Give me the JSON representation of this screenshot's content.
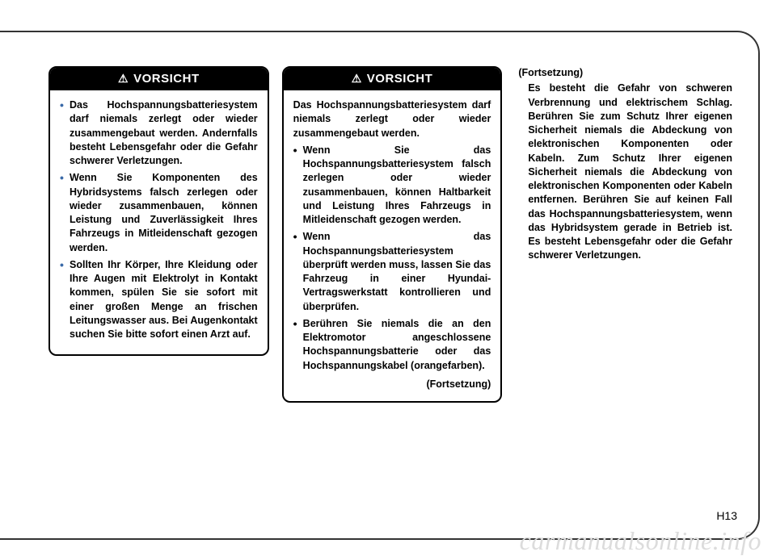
{
  "page_number": "H13",
  "watermark": "carmanualsonline.info",
  "colors": {
    "bullet": "#3a6aa8",
    "border": "#000000",
    "header_bg": "#000000",
    "header_fg": "#ffffff",
    "text": "#000000",
    "watermark": "#dcdcdc"
  },
  "col1": {
    "header": "VORSICHT",
    "items": [
      "Das Hochspannungsbatteriesystem darf niemals zerlegt oder wieder zusammengebaut werden. Andernfalls besteht Lebensgefahr oder die Gefahr schwerer Verletzungen.",
      "Wenn Sie Komponenten des Hybridsystems falsch zerlegen oder wieder zusammenbauen, können Leistung und Zuverlässigkeit Ihres Fahrzeugs in Mitleidenschaft gezogen werden.",
      "Sollten Ihr Körper, Ihre Kleidung oder Ihre Augen mit Elektrolyt in Kontakt kommen, spülen Sie sie sofort mit einer großen Menge an frischen Leitungswasser aus. Bei Augenkontakt suchen Sie bitte sofort einen Arzt auf."
    ]
  },
  "col2": {
    "header": "VORSICHT",
    "intro": "Das Hochspannungsbatteriesystem darf niemals zerlegt oder wieder zusammengebaut werden.",
    "items": [
      "Wenn Sie das Hochspannungsbatteriesystem falsch zerlegen oder wieder zusammenbauen, können Haltbarkeit und Leistung Ihres Fahrzeugs in Mitleidenschaft gezogen werden.",
      "Wenn das Hochspannungsbatteriesystem überprüft werden muss, lassen Sie das Fahrzeug in einer Hyundai-Vertragswerkstatt kontrollieren und überprüfen.",
      "Berühren Sie niemals die an den Elektromotor angeschlossene Hochspannungsbatterie oder das Hochspannungskabel (orangefarben)."
    ],
    "continued": "(Fortsetzung)"
  },
  "col3": {
    "continued": "(Fortsetzung)",
    "body": "Es besteht die Gefahr von schweren Verbrennung und elektrischem Schlag. Berühren Sie zum Schutz Ihrer eigenen Sicherheit niemals die Abdeckung von elektronischen Komponenten oder Kabeln. Zum Schutz Ihrer eigenen Sicherheit niemals die Abdeckung von elektronischen Komponenten oder Kabeln entfernen. Berühren Sie auf keinen Fall das Hochspannungsbatteriesystem, wenn das Hybridsystem gerade in Betrieb ist. Es besteht Lebensgefahr oder die Gefahr schwerer Verletzungen."
  }
}
